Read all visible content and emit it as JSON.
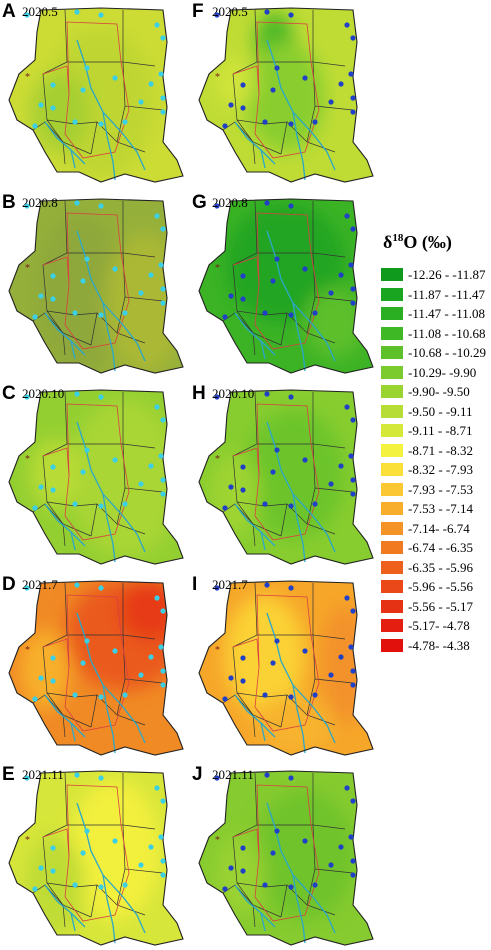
{
  "panels": [
    {
      "id": "A",
      "date": "2020.5",
      "points": "cyan"
    },
    {
      "id": "B",
      "date": "2020.8",
      "points": "cyan"
    },
    {
      "id": "C",
      "date": "2020.10",
      "points": "cyan"
    },
    {
      "id": "D",
      "date": "2021.7",
      "points": "cyan"
    },
    {
      "id": "E",
      "date": "2021.11",
      "points": "cyan"
    },
    {
      "id": "F",
      "date": "2020.5",
      "points": "blue"
    },
    {
      "id": "G",
      "date": "2020.8",
      "points": "blue"
    },
    {
      "id": "H",
      "date": "2020.10",
      "points": "blue"
    },
    {
      "id": "I",
      "date": "2021.7",
      "points": "blue"
    },
    {
      "id": "J",
      "date": "2021.11",
      "points": "blue"
    }
  ],
  "legend": {
    "title_main": "δ",
    "title_sup": "18",
    "title_rest": "O (‰)",
    "items": [
      {
        "label": "-12.26 - -11.87",
        "color": "#0f9a1e"
      },
      {
        "label": "-11.87 - -11.47",
        "color": "#1aa520"
      },
      {
        "label": "-11.47 - -11.08",
        "color": "#2aae22"
      },
      {
        "label": "-11.08 - -10.68",
        "color": "#3eb825"
      },
      {
        "label": "-10.68 - -10.29",
        "color": "#5ec12a"
      },
      {
        "label": "-10.29- -9.90",
        "color": "#7ccb2e"
      },
      {
        "label": "-9.90- -9.50",
        "color": "#99d431"
      },
      {
        "label": "-9.50 - -9.11",
        "color": "#b6dd35"
      },
      {
        "label": "-9.11 - -8.71",
        "color": "#d4e83a"
      },
      {
        "label": "-8.71 - -8.32",
        "color": "#f2f23f"
      },
      {
        "label": "-8.32 - -7.93",
        "color": "#fce03a"
      },
      {
        "label": "-7.93 - -7.53",
        "color": "#fbc733"
      },
      {
        "label": "-7.53 - -7.14",
        "color": "#f8ae2b"
      },
      {
        "label": "-7.14- -6.74",
        "color": "#f59426"
      },
      {
        "label": "-6.74 - -6.35",
        "color": "#f17a21"
      },
      {
        "label": "-6.35 - -5.96",
        "color": "#ed611c"
      },
      {
        "label": "-5.96 - -5.56",
        "color": "#ea4818"
      },
      {
        "label": "-5.56 - -5.17",
        "color": "#e63214"
      },
      {
        "label": "-5.17- -4.78",
        "color": "#e41e10"
      },
      {
        "label": "-4.78- -4.38",
        "color": "#e2100c"
      }
    ]
  },
  "colors": {
    "boundary": "#333333",
    "district": "#d84040",
    "river": "#2aa7c9",
    "point_cyan": "#3ad0e6",
    "point_blue": "#2040c8",
    "star": "#7a1c1c"
  }
}
